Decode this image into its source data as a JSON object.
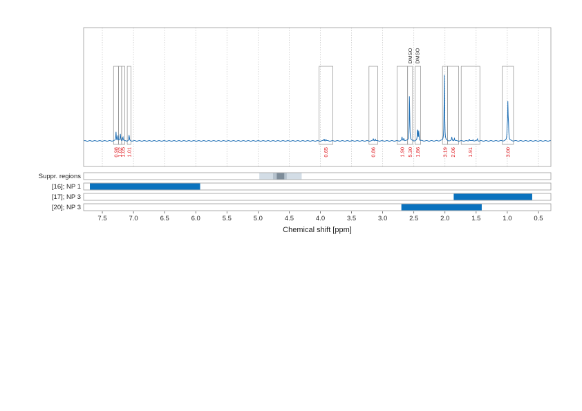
{
  "chart_data": {
    "type": "line",
    "title": "",
    "xlabel": "Chemical shift [ppm]",
    "xlim": [
      7.8,
      0.3
    ],
    "x_reversed": true,
    "grid_x": [
      7.5,
      7.0,
      6.5,
      6.0,
      5.5,
      5.0,
      4.5,
      4.0,
      3.5,
      3.0,
      2.5,
      2.0,
      1.5,
      1.0,
      0.5
    ],
    "xticks": [
      {
        "value": 7.5,
        "label": "7.5"
      },
      {
        "value": 7.0,
        "label": "7.0"
      },
      {
        "value": 6.5,
        "label": "6.5"
      },
      {
        "value": 6.0,
        "label": "6.0"
      },
      {
        "value": 5.5,
        "label": "5.5"
      },
      {
        "value": 5.0,
        "label": "5.0"
      },
      {
        "value": 4.5,
        "label": "4.5"
      },
      {
        "value": 4.0,
        "label": "4.0"
      },
      {
        "value": 3.5,
        "label": "3.5"
      },
      {
        "value": 3.0,
        "label": "3.0"
      },
      {
        "value": 2.5,
        "label": "2.5"
      },
      {
        "value": 2.0,
        "label": "2.0"
      },
      {
        "value": 1.5,
        "label": "1.5"
      },
      {
        "value": 1.0,
        "label": "1.0"
      },
      {
        "value": 0.5,
        "label": "0.5"
      }
    ],
    "line_color": "#1f6fb5",
    "peaks": [
      {
        "shift": 7.28,
        "height": 0.12
      },
      {
        "shift": 7.25,
        "height": 0.08
      },
      {
        "shift": 7.21,
        "height": 0.09
      },
      {
        "shift": 7.17,
        "height": 0.06
      },
      {
        "shift": 7.07,
        "height": 0.08
      },
      {
        "shift": 3.94,
        "height": 0.03
      },
      {
        "shift": 3.91,
        "height": 0.02
      },
      {
        "shift": 3.15,
        "height": 0.03
      },
      {
        "shift": 3.12,
        "height": 0.03
      },
      {
        "shift": 2.69,
        "height": 0.05
      },
      {
        "shift": 2.66,
        "height": 0.04
      },
      {
        "shift": 2.57,
        "height": 0.65
      },
      {
        "shift": 2.44,
        "height": 0.18
      },
      {
        "shift": 2.42,
        "height": 0.14
      },
      {
        "shift": 2.01,
        "height": 0.92
      },
      {
        "shift": 1.89,
        "height": 0.05
      },
      {
        "shift": 1.85,
        "height": 0.04
      },
      {
        "shift": 1.61,
        "height": 0.03
      },
      {
        "shift": 1.55,
        "height": 0.02
      },
      {
        "shift": 1.48,
        "height": 0.03
      },
      {
        "shift": 1.0,
        "height": 0.16
      },
      {
        "shift": 0.99,
        "height": 0.5
      },
      {
        "shift": 0.98,
        "height": 0.16
      }
    ],
    "integration_regions": [
      {
        "from": 7.32,
        "to": 7.24,
        "value": "0.98"
      },
      {
        "from": 7.24,
        "to": 7.19,
        "value": "1.02"
      },
      {
        "from": 7.19,
        "to": 7.14,
        "value": "1.05"
      },
      {
        "from": 7.1,
        "to": 7.04,
        "value": "1.01"
      },
      {
        "from": 4.02,
        "to": 3.8,
        "value": "0.65"
      },
      {
        "from": 3.22,
        "to": 3.08,
        "value": "0.86"
      },
      {
        "from": 2.77,
        "to": 2.6,
        "value": "1.90"
      },
      {
        "from": 2.6,
        "to": 2.52,
        "value": "5.30"
      },
      {
        "from": 2.48,
        "to": 2.39,
        "value": "1.86"
      },
      {
        "from": 2.04,
        "to": 1.96,
        "value": "3.19"
      },
      {
        "from": 1.96,
        "to": 1.78,
        "value": "2.06"
      },
      {
        "from": 1.74,
        "to": 1.44,
        "value": "1.91"
      },
      {
        "from": 1.08,
        "to": 0.9,
        "value": "3.00"
      }
    ],
    "solvent_annotations": [
      {
        "shift": 2.56,
        "label": "DMSO"
      },
      {
        "shift": 2.44,
        "label": "DMSO"
      }
    ],
    "tracks": [
      {
        "label": "Suppr. regions",
        "type": "suppression",
        "bands": [
          {
            "from": 4.98,
            "to": 4.3,
            "shade": "#d3dde6"
          },
          {
            "from": 4.76,
            "to": 4.54,
            "shade": "#b5c2cd"
          },
          {
            "from": 4.7,
            "to": 4.58,
            "shade": "#7d8c99"
          }
        ]
      },
      {
        "label": "[16]; NP 1",
        "type": "range",
        "from": 7.7,
        "to": 5.93,
        "color": "#0a72be"
      },
      {
        "label": "[17]; NP 3",
        "type": "range",
        "from": 1.86,
        "to": 0.6,
        "color": "#0a72be"
      },
      {
        "label": "[20]; NP 3",
        "type": "range",
        "from": 2.7,
        "to": 1.41,
        "color": "#0a72be"
      }
    ]
  }
}
